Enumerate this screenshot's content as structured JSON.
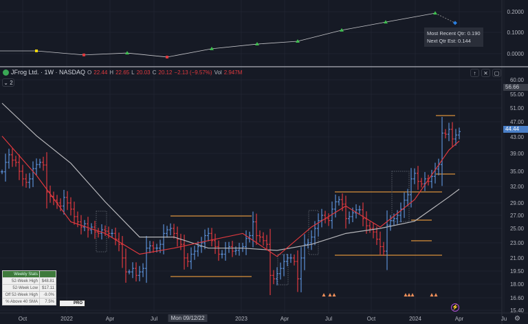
{
  "header": {
    "symbol": "JFrog Ltd. · 1W · NASDAQ",
    "o_label": "O",
    "o": "22.44",
    "h_label": "H",
    "h": "22.65",
    "l_label": "L",
    "l": "20.03",
    "c_label": "C",
    "c": "20.12",
    "change": "−2.13 (−9.57%)",
    "vol_label": "Vol",
    "vol": "2.947M",
    "indicators_count": "2"
  },
  "eps_pane": {
    "axis": [
      "0.2000",
      "0.1000",
      "0.0000"
    ],
    "tooltip": {
      "recent": "Most Recent Qtr: 0.190",
      "next": "Next Qtr Est: 0.144"
    },
    "points": [
      0.013,
      -0.006,
      0.003,
      -0.016,
      0.023,
      0.045,
      0.058,
      0.11,
      0.148,
      0.19
    ],
    "estimate": 0.144
  },
  "price_axis": [
    "60.00",
    "55.00",
    "51.00",
    "47.00",
    "43.00",
    "39.00",
    "35.00",
    "32.00",
    "29.00",
    "27.00",
    "25.00",
    "23.00",
    "21.00",
    "19.50",
    "18.00",
    "16.60",
    "15.40"
  ],
  "badges": {
    "high": "56.66",
    "last": "44.44"
  },
  "time_axis": [
    "Oct",
    "2022",
    "Apr",
    "Jul",
    "Mon 09/12/22",
    "2023",
    "Apr",
    "Jul",
    "Oct",
    "2024",
    "Apr",
    "Ju"
  ],
  "stats": {
    "title": "Weekly Stats",
    "rows": [
      [
        "52-Week High",
        "$48.81"
      ],
      [
        "52-Week Low",
        "$17.11"
      ],
      [
        "Off 52-Week High",
        "-9.0%"
      ],
      [
        "% Above 40 SMA",
        "7.5%"
      ]
    ],
    "logo": "PRO"
  },
  "colors": {
    "up": "#5b8fd6",
    "down": "#e0393e",
    "ma10": "#e0393e",
    "ma40": "#b8b8bc",
    "base": "#d9913a",
    "bg": "#161a25"
  },
  "chart_data": {
    "type": "bar",
    "interval": "1W",
    "closes": [
      34.9,
      37,
      38.7,
      37.5,
      37,
      35,
      33.5,
      32.8,
      33.5,
      35.6,
      36.5,
      37,
      36.4,
      31,
      30.2,
      29.5,
      29,
      28.5,
      30,
      29,
      28,
      26.8,
      26,
      25.2,
      25.7,
      24.8,
      25.2,
      24.5,
      24.3,
      24.8,
      24.6,
      24.3,
      24.3,
      23.5,
      22.8,
      21,
      19.4,
      19.4,
      19.8,
      19,
      19.4,
      19.8,
      22.3,
      22.6,
      22.3,
      22.3,
      22.8,
      24.3,
      24.8,
      25,
      24.3,
      23.5,
      22.8,
      21,
      20.6,
      21.5,
      21.9,
      22.5,
      23,
      24,
      24.3,
      23.3,
      22.5,
      21.5,
      21.5,
      22.3,
      22.5,
      21.9,
      22,
      22.3,
      22.5,
      23.6,
      24,
      26,
      24,
      23.8,
      23.3,
      22.8,
      19,
      18.6,
      19.2,
      19.8,
      20.6,
      21,
      21,
      20.6,
      18.6,
      21,
      22.8,
      23,
      23.8,
      25,
      26.2,
      27,
      26.5,
      26.2,
      28,
      29.2,
      29.6,
      28.8,
      26.5,
      26.8,
      27.4,
      27.9,
      27.9,
      26.5,
      25.4,
      25,
      24.5,
      23.5,
      22.5,
      21.9,
      25.5,
      26.2,
      26.5,
      27,
      28,
      29.5,
      30.5,
      33.5,
      34.6,
      33,
      32.5,
      33.5,
      33,
      34,
      35.5,
      36.5,
      44,
      43.7,
      45,
      42.5,
      43.5,
      44.4
    ],
    "ma10_every10": [
      43.2,
      34.2,
      26,
      24.3,
      21.5,
      22.3,
      23.3,
      24.3,
      21.2,
      25.2,
      28.5,
      25.2,
      29.6,
      39.8,
      42
    ],
    "ma40_every10": [
      52.4,
      43.3,
      36.8,
      29.2,
      23.8,
      23.8,
      22.3,
      22.3,
      22,
      22.8,
      24.3,
      25,
      26.1,
      30.1,
      31.5
    ]
  }
}
